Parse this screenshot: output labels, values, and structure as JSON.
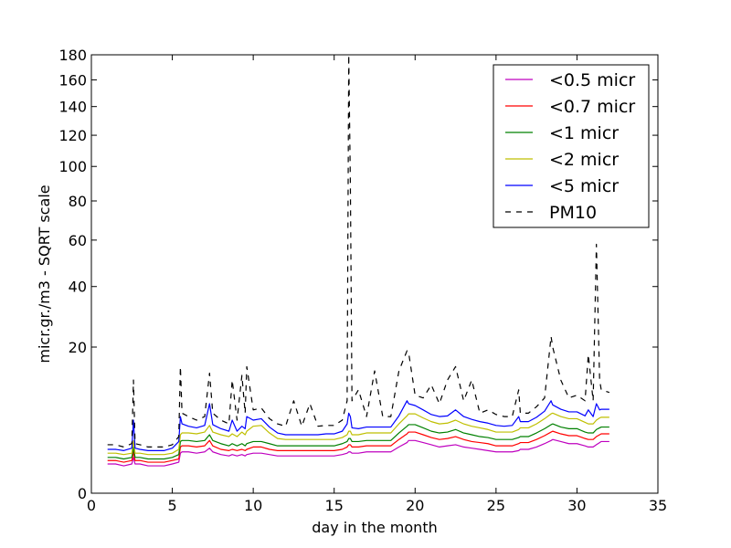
{
  "chart_data": {
    "type": "line",
    "title": "",
    "xlabel": "day in the month",
    "ylabel": "micr.gr./m3 - SQRT scale",
    "xlim": [
      0,
      35
    ],
    "ylim": [
      0,
      180
    ],
    "y_scale": "sqrt",
    "grid": false,
    "legend_position": "top-right",
    "x_ticks": [
      0,
      5,
      10,
      15,
      20,
      25,
      30,
      35
    ],
    "y_ticks": [
      0,
      20,
      40,
      60,
      80,
      100,
      120,
      140,
      160,
      180
    ],
    "x_tick_labels": [
      "0",
      "5",
      "10",
      "15",
      "20",
      "25",
      "30",
      "35"
    ],
    "y_tick_labels": [
      "0",
      "20",
      "40",
      "60",
      "80",
      "100",
      "120",
      "140",
      "160",
      "180"
    ],
    "x_points": [
      1.0,
      1.5,
      2.0,
      2.5,
      2.6,
      2.7,
      3.0,
      3.5,
      4.0,
      4.5,
      5.0,
      5.4,
      5.5,
      5.6,
      6.0,
      6.5,
      7.0,
      7.3,
      7.5,
      8.0,
      8.5,
      8.7,
      9.0,
      9.3,
      9.5,
      9.6,
      10.0,
      10.5,
      11.0,
      11.5,
      12.0,
      12.5,
      13.0,
      13.5,
      14.0,
      14.5,
      15.0,
      15.5,
      15.8,
      15.9,
      16.0,
      16.1,
      16.5,
      17.0,
      17.5,
      18.0,
      18.5,
      19.0,
      19.5,
      19.6,
      20.0,
      20.5,
      21.0,
      21.5,
      22.0,
      22.5,
      23.0,
      23.5,
      24.0,
      24.5,
      25.0,
      25.5,
      26.0,
      26.4,
      26.5,
      27.0,
      27.5,
      28.0,
      28.4,
      28.5,
      29.0,
      29.5,
      30.0,
      30.5,
      30.7,
      31.0,
      31.2,
      31.4,
      31.5,
      32.0
    ],
    "series": [
      {
        "name": "<0.5 micr",
        "color": "#bf00bf",
        "dash": "solid",
        "values": [
          0.8,
          0.8,
          0.7,
          0.8,
          1.2,
          0.8,
          0.8,
          0.7,
          0.7,
          0.7,
          0.8,
          0.9,
          1.5,
          1.6,
          1.6,
          1.5,
          1.6,
          1.9,
          1.6,
          1.4,
          1.3,
          1.4,
          1.3,
          1.4,
          1.3,
          1.4,
          1.5,
          1.5,
          1.4,
          1.3,
          1.3,
          1.3,
          1.3,
          1.3,
          1.3,
          1.3,
          1.3,
          1.4,
          1.5,
          1.6,
          1.6,
          1.5,
          1.5,
          1.6,
          1.6,
          1.6,
          1.6,
          2.0,
          2.4,
          2.6,
          2.6,
          2.4,
          2.2,
          2.0,
          2.1,
          2.2,
          2.0,
          1.9,
          1.8,
          1.7,
          1.6,
          1.6,
          1.6,
          1.7,
          1.8,
          1.8,
          2.0,
          2.3,
          2.6,
          2.7,
          2.5,
          2.3,
          2.3,
          2.1,
          2.0,
          2.0,
          2.2,
          2.4,
          2.5,
          2.5
        ]
      },
      {
        "name": "<0.7 micr",
        "color": "#ff0000",
        "dash": "solid",
        "values": [
          1.0,
          1.0,
          0.9,
          1.0,
          1.6,
          1.0,
          1.0,
          0.9,
          0.9,
          0.9,
          1.0,
          1.1,
          2.0,
          2.1,
          2.1,
          2.0,
          2.1,
          2.6,
          2.1,
          1.8,
          1.7,
          1.8,
          1.7,
          1.8,
          1.7,
          1.8,
          2.0,
          2.0,
          1.8,
          1.7,
          1.7,
          1.7,
          1.7,
          1.7,
          1.7,
          1.7,
          1.7,
          1.8,
          2.0,
          2.2,
          2.2,
          2.0,
          2.0,
          2.1,
          2.1,
          2.1,
          2.1,
          2.7,
          3.3,
          3.5,
          3.5,
          3.2,
          2.9,
          2.7,
          2.8,
          3.0,
          2.7,
          2.5,
          2.4,
          2.3,
          2.1,
          2.1,
          2.1,
          2.3,
          2.4,
          2.4,
          2.7,
          3.1,
          3.5,
          3.6,
          3.3,
          3.1,
          3.1,
          2.8,
          2.7,
          2.7,
          3.0,
          3.2,
          3.3,
          3.3
        ]
      },
      {
        "name": "<1 micr",
        "color": "#008000",
        "dash": "solid",
        "values": [
          1.2,
          1.2,
          1.1,
          1.2,
          2.0,
          1.2,
          1.2,
          1.1,
          1.1,
          1.1,
          1.2,
          1.4,
          2.5,
          2.6,
          2.6,
          2.5,
          2.6,
          3.2,
          2.6,
          2.3,
          2.1,
          2.3,
          2.1,
          2.3,
          2.1,
          2.3,
          2.5,
          2.5,
          2.3,
          2.1,
          2.1,
          2.1,
          2.1,
          2.1,
          2.1,
          2.1,
          2.1,
          2.3,
          2.5,
          2.8,
          2.8,
          2.5,
          2.5,
          2.6,
          2.6,
          2.6,
          2.6,
          3.4,
          4.2,
          4.4,
          4.4,
          4.0,
          3.6,
          3.4,
          3.5,
          3.8,
          3.4,
          3.2,
          3.0,
          2.9,
          2.7,
          2.7,
          2.7,
          2.9,
          3.0,
          3.0,
          3.4,
          3.9,
          4.4,
          4.5,
          4.1,
          3.9,
          3.9,
          3.5,
          3.4,
          3.4,
          3.8,
          4.0,
          4.1,
          4.1
        ]
      },
      {
        "name": "<2 micr",
        "color": "#bfbf00",
        "dash": "solid",
        "values": [
          1.5,
          1.5,
          1.4,
          1.5,
          2.6,
          1.5,
          1.5,
          1.4,
          1.4,
          1.4,
          1.5,
          1.8,
          3.2,
          3.4,
          3.4,
          3.3,
          3.5,
          4.3,
          3.5,
          3.2,
          3.0,
          3.3,
          3.0,
          3.5,
          3.2,
          3.6,
          4.2,
          4.3,
          3.4,
          2.8,
          2.7,
          2.7,
          2.7,
          2.7,
          2.7,
          2.7,
          2.7,
          2.9,
          3.2,
          3.6,
          3.6,
          3.2,
          3.2,
          3.4,
          3.4,
          3.4,
          3.4,
          4.5,
          5.6,
          5.9,
          5.9,
          5.3,
          4.8,
          4.5,
          4.6,
          5.0,
          4.5,
          4.2,
          4.0,
          3.8,
          3.5,
          3.5,
          3.5,
          3.8,
          4.0,
          4.0,
          4.5,
          5.2,
          5.9,
          6.0,
          5.5,
          5.2,
          5.2,
          4.7,
          4.5,
          4.5,
          5.0,
          5.3,
          5.4,
          5.4
        ]
      },
      {
        "name": "<5 micr",
        "color": "#0000ff",
        "dash": "solid",
        "values": [
          1.8,
          1.8,
          1.7,
          1.9,
          5.0,
          1.9,
          1.8,
          1.7,
          1.7,
          1.7,
          1.9,
          2.5,
          5.5,
          4.5,
          4.2,
          4.0,
          4.3,
          7.5,
          4.4,
          3.9,
          3.6,
          5.0,
          3.6,
          4.2,
          3.9,
          5.5,
          5.0,
          5.2,
          4.1,
          3.4,
          3.2,
          3.2,
          3.2,
          3.2,
          3.2,
          3.3,
          3.3,
          3.6,
          4.5,
          6.0,
          5.5,
          4.0,
          3.9,
          4.1,
          4.1,
          4.1,
          4.1,
          5.6,
          8.0,
          7.5,
          7.2,
          6.5,
          5.8,
          5.5,
          5.6,
          6.5,
          5.5,
          5.1,
          4.8,
          4.6,
          4.3,
          4.2,
          4.3,
          5.5,
          4.8,
          4.8,
          5.4,
          6.3,
          8.0,
          7.3,
          6.6,
          6.2,
          6.2,
          5.6,
          6.5,
          5.5,
          7.5,
          6.5,
          6.6,
          6.6
        ]
      },
      {
        "name": "PM10",
        "color": "#000000",
        "dash": "dashed",
        "values": [
          2.2,
          2.2,
          2.0,
          2.3,
          12.0,
          2.3,
          2.2,
          2.0,
          2.0,
          2.0,
          2.2,
          3.0,
          15.0,
          6.0,
          5.5,
          5.0,
          5.5,
          13.5,
          6.0,
          5.0,
          4.5,
          12.0,
          5.0,
          13.0,
          6.0,
          15.0,
          6.5,
          6.8,
          5.2,
          4.5,
          4.2,
          8.0,
          4.2,
          7.5,
          4.2,
          4.3,
          4.3,
          5.0,
          8.0,
          180.0,
          90.0,
          8.0,
          10.0,
          5.5,
          14.0,
          5.5,
          5.5,
          14.0,
          19.0,
          18.5,
          9.0,
          8.5,
          11.0,
          7.5,
          12.0,
          15.0,
          8.0,
          12.0,
          6.0,
          6.5,
          5.8,
          5.5,
          5.5,
          10.0,
          6.0,
          6.0,
          7.0,
          8.5,
          23.0,
          20.0,
          12.0,
          8.5,
          9.0,
          8.0,
          18.0,
          8.0,
          58.0,
          12.0,
          10.0,
          9.5
        ]
      }
    ]
  }
}
